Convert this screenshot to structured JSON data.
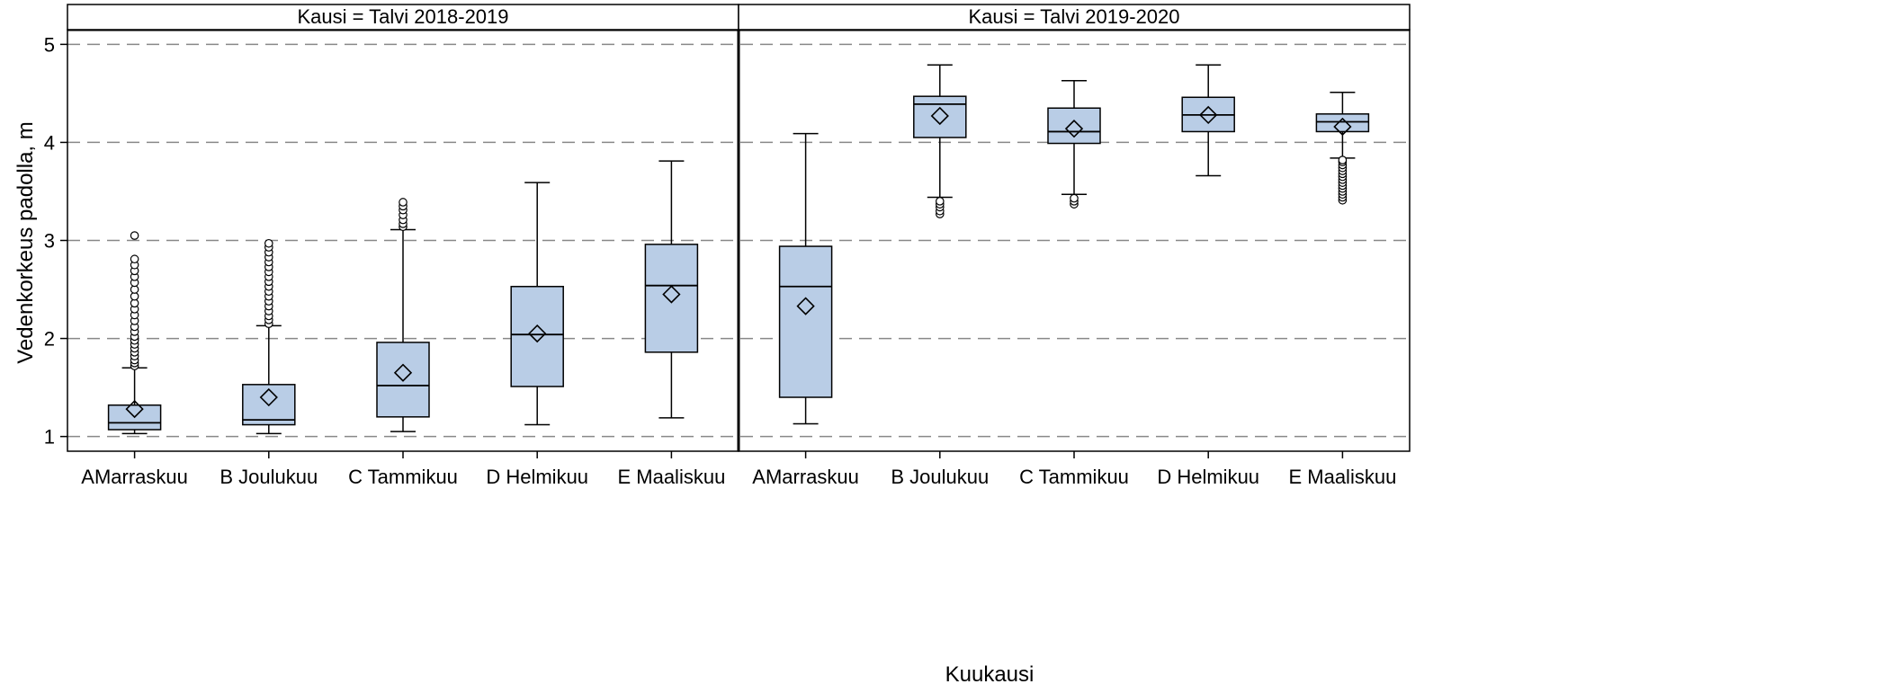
{
  "chart_data": {
    "type": "box",
    "xlabel": "Kuukausi",
    "ylabel": "Vedenkorkeus padolla, m",
    "ylim": [
      0.85,
      5.15
    ],
    "yticks": [
      1,
      2,
      3,
      4,
      5
    ],
    "grid": "horizontal-dashed",
    "box_color": "#b9cde6",
    "line_color": "#000000",
    "grid_color": "#888888",
    "categories": [
      "AMarraskuu",
      "B Joulukuu",
      "C Tammikuu",
      "D Helmikuu",
      "E Maaliskuu"
    ],
    "panels": [
      {
        "label": "Kausi = Talvi 2018-2019",
        "boxes": [
          {
            "category": "AMarraskuu",
            "min": 1.03,
            "q1": 1.07,
            "median": 1.14,
            "q3": 1.32,
            "max": 1.7,
            "mean": 1.28,
            "outliers": [
              1.72,
              1.75,
              1.78,
              1.82,
              1.86,
              1.9,
              1.94,
              1.98,
              2.02,
              2.07,
              2.12,
              2.18,
              2.24,
              2.3,
              2.36,
              2.43,
              2.5,
              2.57,
              2.63,
              2.69,
              2.75,
              2.81,
              3.05
            ]
          },
          {
            "category": "B Joulukuu",
            "min": 1.03,
            "q1": 1.12,
            "median": 1.17,
            "q3": 1.53,
            "max": 2.13,
            "mean": 1.4,
            "outliers": [
              2.15,
              2.19,
              2.23,
              2.28,
              2.33,
              2.38,
              2.43,
              2.48,
              2.53,
              2.58,
              2.63,
              2.68,
              2.73,
              2.78,
              2.83,
              2.88,
              2.93,
              2.97
            ]
          },
          {
            "category": "C Tammikuu",
            "min": 1.05,
            "q1": 1.2,
            "median": 1.52,
            "q3": 1.96,
            "max": 3.11,
            "mean": 1.65,
            "outliers": [
              3.14,
              3.17,
              3.21,
              3.26,
              3.31,
              3.35,
              3.39
            ]
          },
          {
            "category": "D Helmikuu",
            "min": 1.12,
            "q1": 1.51,
            "median": 2.04,
            "q3": 2.53,
            "max": 3.59,
            "mean": 2.05,
            "outliers": []
          },
          {
            "category": "E Maaliskuu",
            "min": 1.19,
            "q1": 1.86,
            "median": 2.54,
            "q3": 2.96,
            "max": 3.81,
            "mean": 2.45,
            "outliers": []
          }
        ]
      },
      {
        "label": "Kausi = Talvi 2019-2020",
        "boxes": [
          {
            "category": "AMarraskuu",
            "min": 1.13,
            "q1": 1.4,
            "median": 2.53,
            "q3": 2.94,
            "max": 4.09,
            "mean": 2.33,
            "outliers": []
          },
          {
            "category": "B Joulukuu",
            "min": 3.44,
            "q1": 4.05,
            "median": 4.39,
            "q3": 4.47,
            "max": 4.79,
            "mean": 4.27,
            "outliers": [
              3.27,
              3.3,
              3.34,
              3.37,
              3.4
            ]
          },
          {
            "category": "C Tammikuu",
            "min": 3.47,
            "q1": 3.99,
            "median": 4.11,
            "q3": 4.35,
            "max": 4.63,
            "mean": 4.14,
            "outliers": [
              3.37,
              3.4,
              3.43
            ]
          },
          {
            "category": "D Helmikuu",
            "min": 3.66,
            "q1": 4.11,
            "median": 4.28,
            "q3": 4.46,
            "max": 4.79,
            "mean": 4.28,
            "outliers": []
          },
          {
            "category": "E Maaliskuu",
            "min": 3.84,
            "q1": 4.11,
            "median": 4.21,
            "q3": 4.29,
            "max": 4.51,
            "mean": 4.16,
            "outliers": [
              3.41,
              3.44,
              3.47,
              3.5,
              3.53,
              3.56,
              3.59,
              3.62,
              3.65,
              3.68,
              3.71,
              3.74,
              3.77,
              3.8,
              3.82
            ]
          }
        ]
      }
    ]
  }
}
